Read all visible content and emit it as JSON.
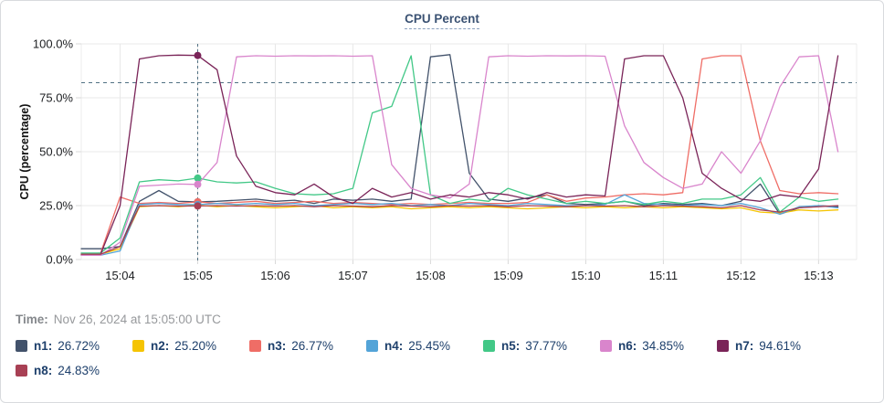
{
  "card": {
    "title": "CPU Percent"
  },
  "time_row": {
    "label": "Time:",
    "value": "Nov 26, 2024 at 15:05:00 UTC"
  },
  "accent_colors": {
    "title": "#3b5273",
    "crosshair": "#3e6276",
    "grid": "#e8e8e8",
    "tick": "#d9d9d9",
    "axis_text": "#1c1e21",
    "legend_text": "#1d3f6b",
    "time_text": "#97999c"
  },
  "chart_data": {
    "type": "line",
    "title": "CPU Percent",
    "xlabel": "",
    "ylabel": "CPU (percentage)",
    "ylim": [
      0,
      100
    ],
    "xlim": [
      3.5,
      13.49
    ],
    "grid": true,
    "legend_position": "bottom",
    "threshold": 82,
    "crosshair_x": 5,
    "y_tick_values": [
      0,
      25,
      50,
      75,
      100
    ],
    "y_tick_labels": [
      "0.0%",
      "25.0%",
      "50.0%",
      "75.0%",
      "100.0%"
    ],
    "x_tick_values": [
      4,
      5,
      6,
      7,
      8,
      9,
      10,
      11,
      12,
      13
    ],
    "x_tick_labels": [
      "15:04",
      "15:05",
      "15:06",
      "15:07",
      "15:08",
      "15:09",
      "15:10",
      "15:11",
      "15:12",
      "15:13"
    ],
    "x_unit": "minutes after 15:00 UTC",
    "x": [
      3.5,
      3.75,
      4,
      4.25,
      4.5,
      4.75,
      5,
      5.25,
      5.5,
      5.75,
      6,
      6.25,
      6.5,
      6.75,
      7,
      7.25,
      7.5,
      7.75,
      8,
      8.25,
      8.5,
      8.75,
      9,
      9.25,
      9.5,
      9.75,
      10,
      10.25,
      10.5,
      10.75,
      11,
      11.25,
      11.5,
      11.75,
      12,
      12.25,
      12.5,
      12.75,
      13,
      13.25
    ],
    "series": [
      {
        "name": "n1",
        "color": "#42526b",
        "value_at_cursor": "26.72%",
        "values": [
          5,
          5,
          6,
          27,
          32,
          27,
          26.72,
          27,
          27.5,
          28,
          27,
          27.5,
          26,
          28,
          27.5,
          28,
          27,
          28,
          94,
          95,
          40,
          28,
          27,
          28.5,
          30,
          26,
          25.5,
          26,
          27,
          25,
          26,
          25.5,
          26,
          25,
          27,
          35,
          21,
          24,
          25,
          24.5
        ]
      },
      {
        "name": "n2",
        "color": "#f5c402",
        "value_at_cursor": "25.20%",
        "values": [
          2,
          2.5,
          5,
          24.5,
          25,
          24.5,
          25.2,
          24.5,
          25,
          24.5,
          24,
          24.5,
          25,
          24,
          24.5,
          24,
          24.5,
          23.5,
          24,
          24.5,
          24,
          24.5,
          24,
          23.5,
          24,
          24.5,
          24,
          24.5,
          24,
          24.5,
          24,
          24.5,
          24,
          23.5,
          24,
          22,
          21.5,
          23,
          22.5,
          23
        ]
      },
      {
        "name": "n3",
        "color": "#ef6d66",
        "value_at_cursor": "26.77%",
        "values": [
          2.5,
          3,
          29,
          26,
          26.5,
          26,
          26.77,
          26,
          26.5,
          27,
          26,
          26.5,
          27,
          26,
          26.5,
          26,
          25.5,
          26,
          25.5,
          26,
          26.5,
          26,
          26,
          26.5,
          30,
          27,
          28.5,
          29,
          30,
          30.5,
          30,
          31,
          93,
          94.5,
          94.5,
          55,
          32,
          30.5,
          31,
          30.5
        ]
      },
      {
        "name": "n4",
        "color": "#53a4d8",
        "value_at_cursor": "25.45%",
        "values": [
          2,
          2,
          4,
          25.5,
          26,
          25.5,
          25.45,
          26,
          25.5,
          26,
          25.5,
          26,
          25,
          25.5,
          26,
          25.5,
          26,
          25,
          25.5,
          25,
          26,
          25.5,
          25,
          26,
          25.5,
          25,
          25,
          25.5,
          30,
          26,
          25.5,
          25,
          25.5,
          25,
          26,
          24,
          21,
          24.5,
          25,
          24
        ]
      },
      {
        "name": "n5",
        "color": "#42c887",
        "value_at_cursor": "37.77%",
        "values": [
          3,
          3,
          10,
          36,
          37,
          36.5,
          37.77,
          36,
          35.5,
          36,
          33,
          30.5,
          30,
          30.5,
          33,
          68,
          71,
          94.5,
          30,
          26,
          28,
          27,
          33,
          30,
          28,
          26,
          27,
          26,
          27,
          25.5,
          27,
          26,
          28,
          28,
          30,
          38,
          22,
          29,
          27,
          28
        ]
      },
      {
        "name": "n6",
        "color": "#d985cc",
        "value_at_cursor": "34.85%",
        "values": [
          2,
          2,
          8,
          34,
          34.5,
          35,
          34.85,
          45,
          94,
          94.5,
          94.3,
          94.5,
          94.4,
          94.5,
          94.3,
          94.5,
          44,
          33,
          30,
          28.5,
          35,
          94,
          94.5,
          94.3,
          94.5,
          94.4,
          94.5,
          94.3,
          62,
          45,
          38,
          33,
          35,
          50,
          40,
          55,
          80,
          94,
          94.5,
          50
        ]
      },
      {
        "name": "n7",
        "color": "#7a2458",
        "value_at_cursor": "94.61%",
        "values": [
          2.5,
          2.5,
          25,
          93,
          94.5,
          94.8,
          94.61,
          88,
          48,
          34,
          31,
          30,
          35,
          29,
          26,
          33,
          29,
          31,
          28,
          30,
          29,
          31,
          30,
          28,
          31,
          29,
          30,
          29.5,
          93,
          94.5,
          94.5,
          75,
          40,
          33,
          28,
          27,
          30,
          29,
          42,
          94.5
        ]
      },
      {
        "name": "n8",
        "color": "#a84054",
        "value_at_cursor": "24.83%",
        "values": [
          2.5,
          2.5,
          6,
          24.8,
          25,
          24.8,
          24.83,
          25,
          24.8,
          25,
          24.8,
          25,
          24.5,
          25,
          24.8,
          24.5,
          25,
          24.8,
          24.5,
          25,
          24.8,
          25,
          24.5,
          25,
          24.8,
          24.5,
          25,
          24.8,
          25,
          24.5,
          25,
          24.8,
          24.5,
          24,
          25,
          23,
          22,
          24,
          24.5,
          25
        ]
      }
    ]
  }
}
